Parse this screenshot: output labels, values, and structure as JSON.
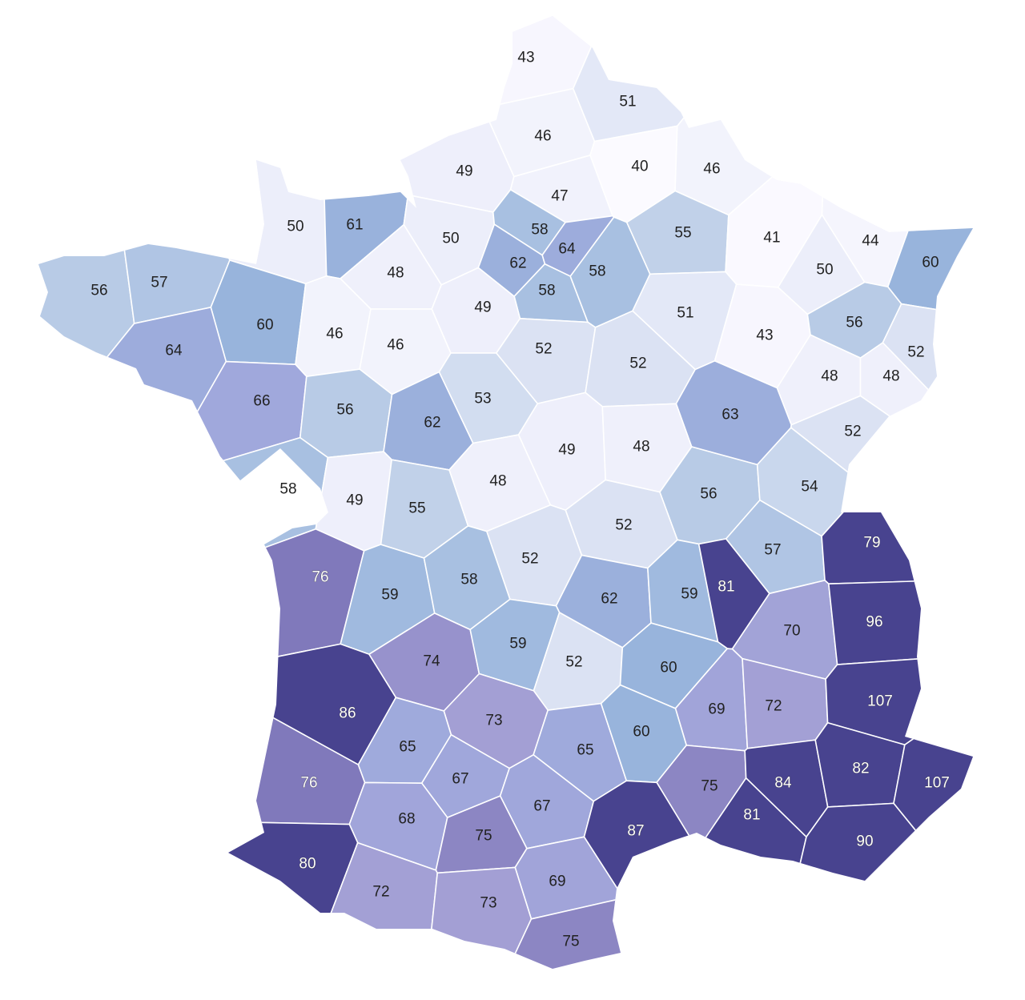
{
  "map": {
    "type": "choropleth",
    "color_scale": [
      {
        "value": 40,
        "color": "#fbfaff"
      },
      {
        "value": 50,
        "color": "#eceefa"
      },
      {
        "value": 56,
        "color": "#b8cbe6"
      },
      {
        "value": 60,
        "color": "#98b4dc"
      },
      {
        "value": 66,
        "color": "#a0a8dc"
      },
      {
        "value": 73,
        "color": "#a39fd4"
      },
      {
        "value": 76,
        "color": "#8079bb"
      },
      {
        "value": 79,
        "color": "#48438f"
      },
      {
        "value": 107,
        "color": "#48438f"
      }
    ],
    "departments": [
      43,
      51,
      46,
      49,
      40,
      46,
      47,
      50,
      61,
      50,
      58,
      64,
      62,
      58,
      58,
      55,
      41,
      44,
      60,
      50,
      56,
      57,
      48,
      60,
      46,
      46,
      49,
      51,
      43,
      56,
      52,
      64,
      52,
      52,
      48,
      48,
      66,
      56,
      62,
      53,
      63,
      52,
      49,
      48,
      58,
      49,
      55,
      48,
      56,
      54,
      52,
      76,
      52,
      57,
      79,
      59,
      58,
      62,
      59,
      81,
      70,
      96,
      74,
      59,
      52,
      60,
      86,
      73,
      69,
      72,
      107,
      65,
      65,
      60,
      76,
      67,
      75,
      84,
      82,
      107,
      68,
      67,
      87,
      81,
      75,
      90,
      80,
      72,
      69,
      73,
      75
    ]
  }
}
